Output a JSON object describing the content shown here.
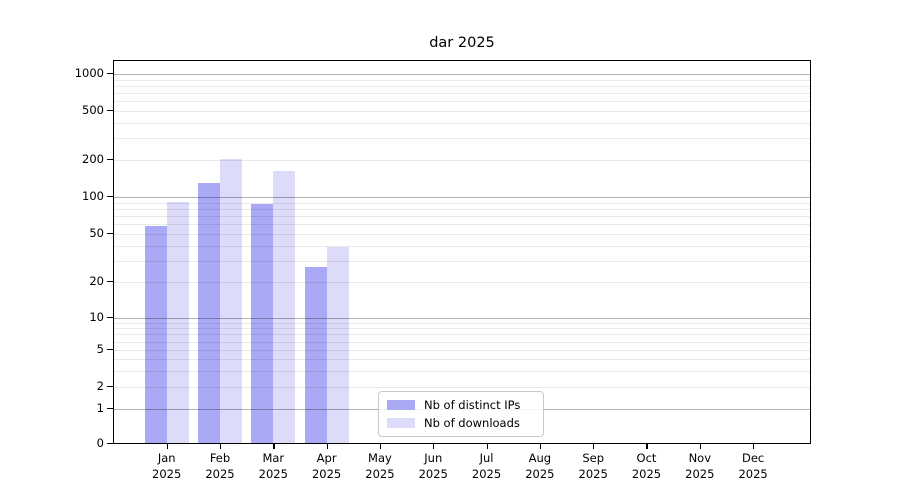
{
  "chart_data": {
    "type": "bar",
    "title": "dar 2025",
    "scale": "symlog",
    "categories": [
      "Jan",
      "Feb",
      "Mar",
      "Apr",
      "May",
      "Jun",
      "Jul",
      "Aug",
      "Sep",
      "Oct",
      "Nov",
      "Dec"
    ],
    "year": "2025",
    "series": [
      {
        "name": "Nb of distinct IPs",
        "color": "#a9a9f6",
        "values": [
          57,
          127,
          86,
          26,
          0,
          0,
          0,
          0,
          0,
          0,
          0,
          0
        ]
      },
      {
        "name": "Nb of downloads",
        "color": "#dcdcfa",
        "values": [
          90,
          200,
          160,
          38,
          0,
          0,
          0,
          0,
          0,
          0,
          0,
          0
        ]
      }
    ],
    "yticks": [
      0,
      1,
      2,
      5,
      10,
      20,
      50,
      100,
      200,
      500,
      1000
    ],
    "ylim": [
      0,
      1000
    ],
    "grid": true,
    "legend_position": "lower center"
  },
  "colors": {
    "bar_distinct_ips": "#a9a9f6",
    "bar_downloads": "#dcdcfa",
    "major_gridline": "#b3b3b3",
    "minor_gridline": "#e8e8e8",
    "axis": "#000000",
    "legend_border": "#c9c9c9"
  }
}
